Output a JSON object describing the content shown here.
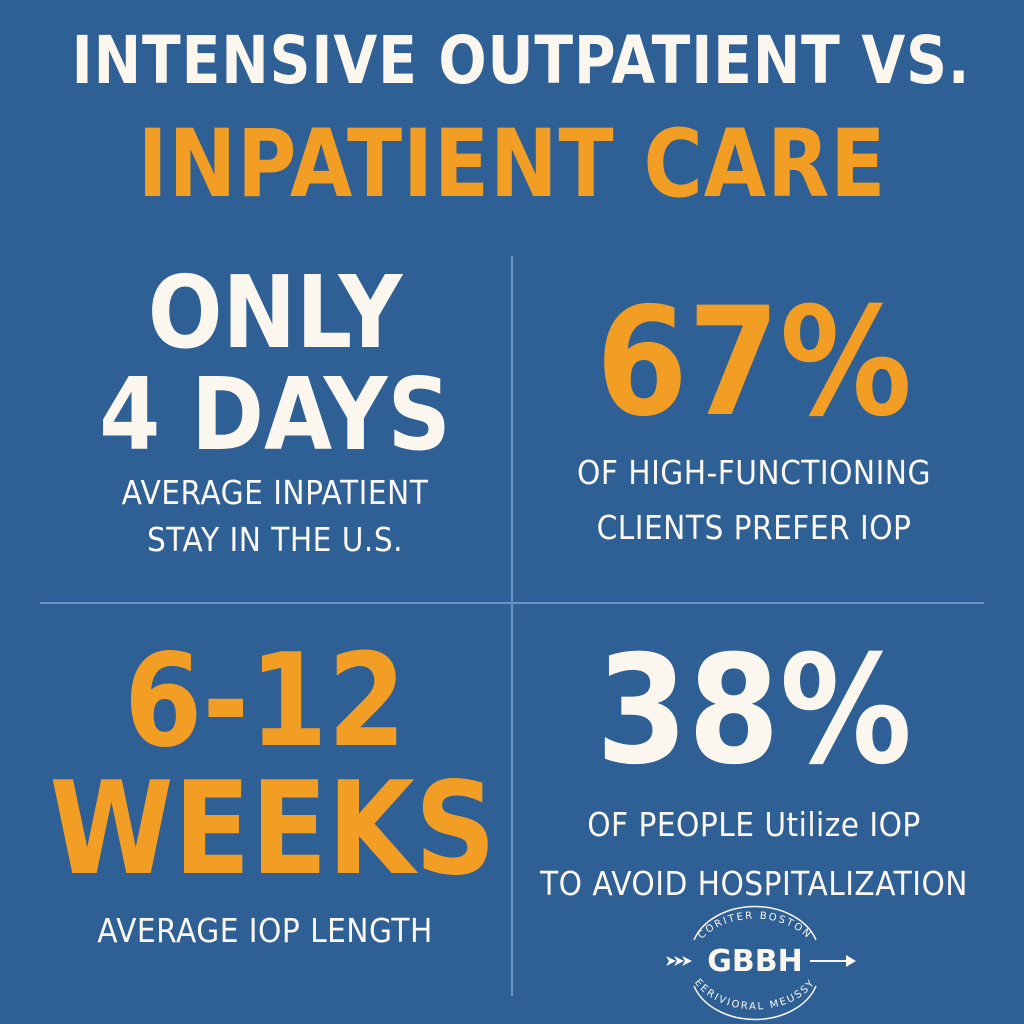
{
  "title": {
    "line1": "INTENSIVE OUTPATIENT VS.",
    "line2": "INPATIENT CARE"
  },
  "stats": {
    "top_left": {
      "line1": "ONLY",
      "line2": "4 DAYS",
      "caption_line1": "AVERAGE INPATIENT",
      "caption_line2": "STAY IN THE U.S."
    },
    "top_right": {
      "value": "67%",
      "caption_line1": "OF HIGH-FUNCTIONING",
      "caption_line2": "CLIENTS PREFER IOP"
    },
    "bottom_left": {
      "line1": "6-12",
      "line2": "WEEKS",
      "caption_line1": "AVERAGE IOP LENGTH"
    },
    "bottom_right": {
      "value": "38%",
      "caption_line1": "OF PEOPLE Utilize IOP",
      "caption_line2": "TO AVOID HOSPITALIZATION"
    }
  },
  "logo": {
    "wordmark": "GBBH",
    "arc_top": "CORITER BOSTON",
    "arc_bottom": "EERIVIORAL MEUSSY"
  },
  "colors": {
    "background": "#2e5f95",
    "accent": "#f29e24",
    "text": "#fbf7ee",
    "divider": "#6a93c0"
  }
}
